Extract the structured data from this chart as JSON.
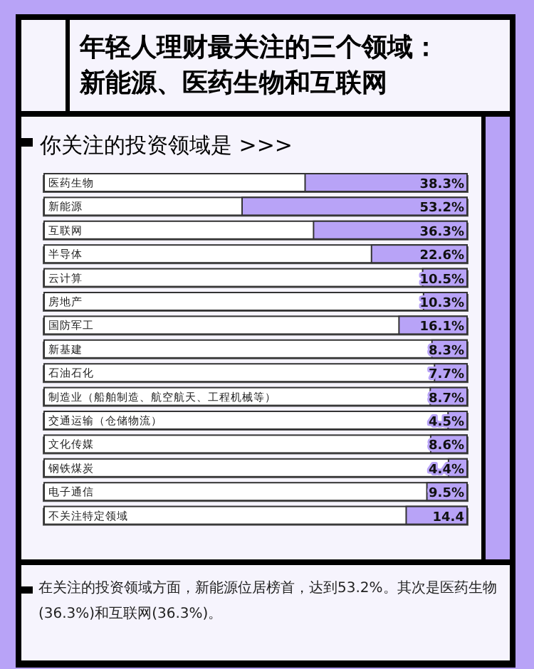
{
  "chart_data": {
    "type": "bar",
    "orientation": "horizontal",
    "title": "年轻人理财最关注的三个领域：新能源、医药生物和互联网",
    "subtitle": "你关注的投资领域是 >>>",
    "categories": [
      "医药生物",
      "新能源",
      "互联网",
      "半导体",
      "云计算",
      "房地产",
      "国防军工",
      "新基建",
      "石油石化",
      "制造业（船舶制造、航空航天、工程机械等）",
      "交通运输（仓储物流）",
      "文化传媒",
      "钢铁煤炭",
      "电子通信",
      "不关注特定领域"
    ],
    "values": [
      38.3,
      53.2,
      36.3,
      22.6,
      10.5,
      10.3,
      16.1,
      8.3,
      7.7,
      8.7,
      4.5,
      8.6,
      4.4,
      9.5,
      14.4
    ],
    "value_labels": [
      "38.3%",
      "53.2%",
      "36.3%",
      "22.6%",
      "10.5%",
      "10.3%",
      "16.1%",
      "8.3%",
      "7.7%",
      "8.7%",
      "4.5%",
      "8.6%",
      "4.4%",
      "9.5%",
      "14.4"
    ],
    "color": "#b8a3f7",
    "xlim": [
      100,
      0
    ],
    "annotations": [
      "在关注的投资领域方面，新能源位居榜首，达到53.2%。其次是医药生物(36.3%)和互联网(36.3%)。"
    ]
  }
}
